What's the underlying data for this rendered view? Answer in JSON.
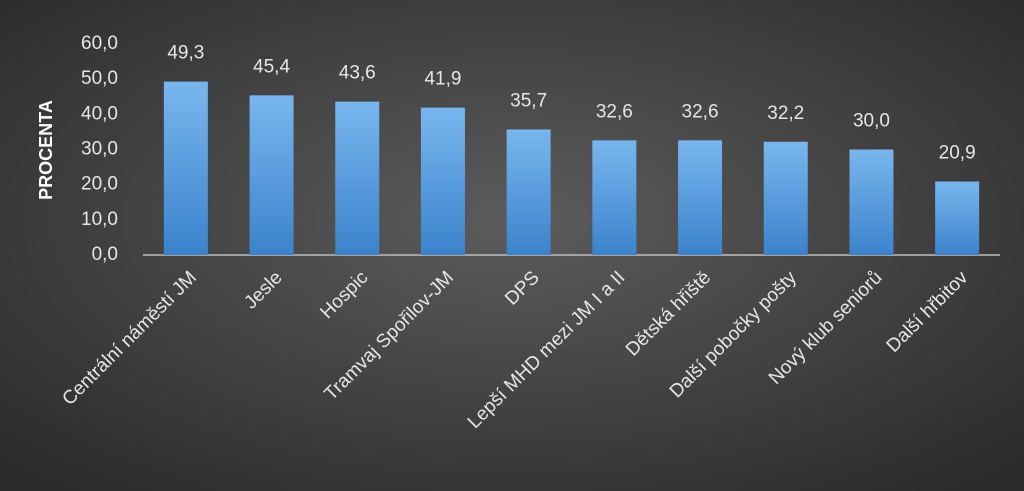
{
  "chart_data": {
    "type": "bar",
    "y_label": "PROCENTA",
    "categories": [
      "Centrální náměstí JM",
      "Jesle",
      "Hospic",
      "Tramvaj Spořilov-JM",
      "DPS",
      "Lepší MHD mezi JM I a II",
      "Dětská hřiště",
      "Další pobočky pošty",
      "Nový klub seniorů",
      "Další hřbitov"
    ],
    "values": [
      49.3,
      45.4,
      43.6,
      41.9,
      35.7,
      32.6,
      32.6,
      32.2,
      30.0,
      20.9
    ],
    "value_labels": [
      "49,3",
      "45,4",
      "43,6",
      "41,9",
      "35,7",
      "32,6",
      "32,6",
      "32,2",
      "30,0",
      "20,9"
    ],
    "color": "#4f97dc",
    "ylim": [
      0,
      60
    ],
    "yticks": [
      {
        "value": 0,
        "label": "0,0"
      },
      {
        "value": 10,
        "label": "10,0"
      },
      {
        "value": 20,
        "label": "20,0"
      },
      {
        "value": 30,
        "label": "30,0"
      },
      {
        "value": 40,
        "label": "40,0"
      },
      {
        "value": 50,
        "label": "50,0"
      },
      {
        "value": 60,
        "label": "60,0"
      }
    ],
    "grid": false
  }
}
